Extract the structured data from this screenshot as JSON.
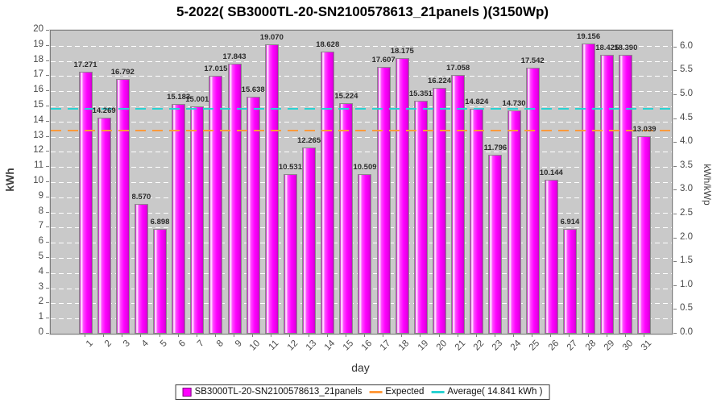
{
  "title": "5-2022( SB3000TL-20-SN2100578613_21panels )(3150Wp)",
  "colors": {
    "bar": "#ff00ff",
    "bar_border": "#8a8a8a",
    "plot_background": "#c9c9c9",
    "gridline": "#ffffff",
    "average_line": "#2ad2d2",
    "expected_line": "#ff9a3c",
    "title_text": "#000000",
    "tick_text": "#4a4a4a"
  },
  "chart_data": {
    "type": "bar",
    "title": "5-2022( SB3000TL-20-SN2100578613_21panels )(3150Wp)",
    "xlabel": "day",
    "ylabel_left": "kWh",
    "ylabel_right": "kWh/kWp",
    "ylim_left": [
      0,
      20
    ],
    "ylim_right": [
      0,
      6.35
    ],
    "kwp_scale": 3.15,
    "grid": "horizontal white dashed, gray plot background",
    "legend_position": "bottom-center",
    "categories": [
      "1",
      "2",
      "3",
      "4",
      "5",
      "6",
      "7",
      "8",
      "9",
      "10",
      "11",
      "12",
      "13",
      "14",
      "15",
      "16",
      "17",
      "18",
      "19",
      "20",
      "21",
      "22",
      "23",
      "24",
      "25",
      "26",
      "27",
      "28",
      "29",
      "30",
      "31"
    ],
    "values": [
      17.271,
      14.269,
      16.792,
      8.57,
      6.898,
      15.183,
      15.001,
      17.015,
      17.843,
      15.638,
      19.07,
      10.531,
      12.265,
      18.628,
      15.224,
      10.509,
      17.607,
      18.175,
      15.351,
      16.224,
      17.058,
      14.824,
      11.796,
      14.73,
      17.542,
      10.144,
      6.914,
      19.156,
      18.425,
      18.39,
      13.039
    ],
    "value_labels": [
      "17.271",
      "14.269",
      "16.792",
      "8.570",
      "6.898",
      "15.183",
      "15.001",
      "17.015",
      "17.843",
      "15.638",
      "19.070",
      "10.531",
      "12.265",
      "18.628",
      "15.224",
      "10.509",
      "17.607",
      "18.175",
      "15.351",
      "16.224",
      "17.058",
      "14.824",
      "11.796",
      "14.730",
      "17.542",
      "10.144",
      "6.914",
      "19.156",
      "18.425",
      "18.390",
      "13.039"
    ],
    "left_ticks": [
      "0",
      "1",
      "2",
      "3",
      "4",
      "5",
      "6",
      "7",
      "8",
      "9",
      "10",
      "11",
      "12",
      "13",
      "14",
      "15",
      "16",
      "17",
      "18",
      "19",
      "20"
    ],
    "right_ticks": [
      "0.0",
      "0.5",
      "1.0",
      "1.5",
      "2.0",
      "2.5",
      "3.0",
      "3.5",
      "4.0",
      "4.5",
      "5.0",
      "5.5",
      "6.0"
    ],
    "average_kwh": 14.841,
    "expected_kwh": 13.4,
    "series_name": "SB3000TL-20-SN2100578613_21panels"
  },
  "legend": {
    "series_label": "SB3000TL-20-SN2100578613_21panels",
    "expected_label": "Expected",
    "average_label": "Average( 14.841 kWh )"
  }
}
